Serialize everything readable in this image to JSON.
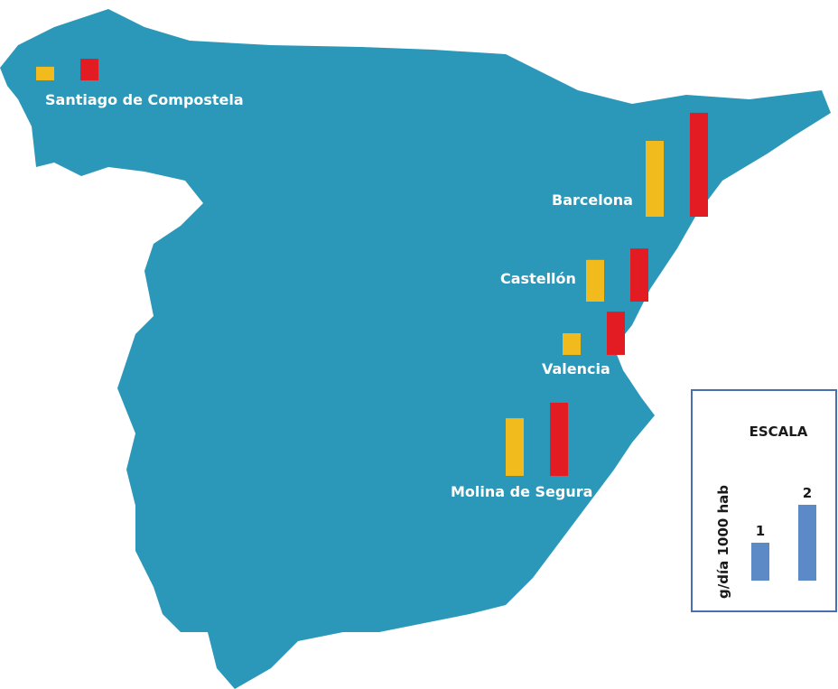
{
  "map": {
    "cities": [
      "Santiago de Compostela",
      "Barcelona",
      "Castellón",
      "Valencia",
      "Molina de Segura"
    ],
    "series": [
      {
        "color": "#f2bb1d",
        "values": [
          0.36,
          2.0,
          1.1,
          0.57,
          1.52
        ]
      },
      {
        "color": "#e31b23",
        "values": [
          0.57,
          2.74,
          1.4,
          1.14,
          1.93
        ]
      }
    ]
  },
  "scale": {
    "title": "ESCALA",
    "unit_label": "g/día 1000 hab",
    "color": "#5b8ac6",
    "values": [
      1,
      2
    ]
  }
}
